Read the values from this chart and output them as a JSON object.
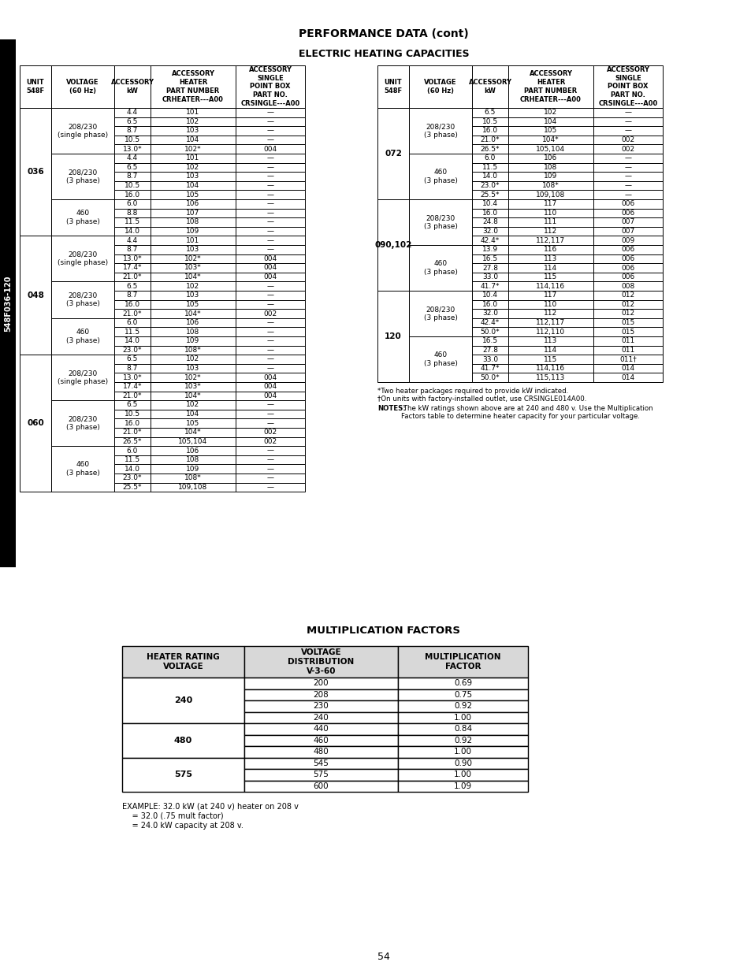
{
  "title1": "PERFORMANCE DATA (cont)",
  "title2": "ELECTRIC HEATING CAPACITIES",
  "title3": "MULTIPLICATION FACTORS",
  "page_number": "54",
  "sidebar_text": "548F036-120",
  "col_headers": [
    "UNIT\n548F",
    "VOLTAGE\n(60 Hz)",
    "ACCESSORY\nkW",
    "ACCESSORY\nHEATER\nPART NUMBER\nCRHEATER---A00",
    "ACCESSORY\nSINGLE\nPOINT BOX\nPART NO.\nCRSINGLE---A00"
  ],
  "left_table_data": [
    {
      "unit": "036",
      "groups": [
        {
          "voltage": "208/230\n(single phase)",
          "rows": [
            [
              "4.4",
              "101",
              "—"
            ],
            [
              "6.5",
              "102",
              "—"
            ],
            [
              "8.7",
              "103",
              "—"
            ],
            [
              "10.5",
              "104",
              "—"
            ],
            [
              "13.0*",
              "102*",
              "004"
            ]
          ]
        },
        {
          "voltage": "208/230\n(3 phase)",
          "rows": [
            [
              "4.4",
              "101",
              "—"
            ],
            [
              "6.5",
              "102",
              "—"
            ],
            [
              "8.7",
              "103",
              "—"
            ],
            [
              "10.5",
              "104",
              "—"
            ],
            [
              "16.0",
              "105",
              "—"
            ]
          ]
        },
        {
          "voltage": "460\n(3 phase)",
          "rows": [
            [
              "6.0",
              "106",
              "—"
            ],
            [
              "8.8",
              "107",
              "—"
            ],
            [
              "11.5",
              "108",
              "—"
            ],
            [
              "14.0",
              "109",
              "—"
            ]
          ]
        }
      ]
    },
    {
      "unit": "048",
      "groups": [
        {
          "voltage": "208/230\n(single phase)",
          "rows": [
            [
              "4.4",
              "101",
              "—"
            ],
            [
              "8.7",
              "103",
              "—"
            ],
            [
              "13.0*",
              "102*",
              "004"
            ],
            [
              "17.4*",
              "103*",
              "004"
            ],
            [
              "21.0*",
              "104*",
              "004"
            ]
          ]
        },
        {
          "voltage": "208/230\n(3 phase)",
          "rows": [
            [
              "6.5",
              "102",
              "—"
            ],
            [
              "8.7",
              "103",
              "—"
            ],
            [
              "16.0",
              "105",
              "—"
            ],
            [
              "21.0*",
              "104*",
              "002"
            ]
          ]
        },
        {
          "voltage": "460\n(3 phase)",
          "rows": [
            [
              "6.0",
              "106",
              "—"
            ],
            [
              "11.5",
              "108",
              "—"
            ],
            [
              "14.0",
              "109",
              "—"
            ],
            [
              "23.0*",
              "108*",
              "—"
            ]
          ]
        }
      ]
    },
    {
      "unit": "060",
      "groups": [
        {
          "voltage": "208/230\n(single phase)",
          "rows": [
            [
              "6.5",
              "102",
              "—"
            ],
            [
              "8.7",
              "103",
              "—"
            ],
            [
              "13.0*",
              "102*",
              "004"
            ],
            [
              "17.4*",
              "103*",
              "004"
            ],
            [
              "21.0*",
              "104*",
              "004"
            ]
          ]
        },
        {
          "voltage": "208/230\n(3 phase)",
          "rows": [
            [
              "6.5",
              "102",
              "—"
            ],
            [
              "10.5",
              "104",
              "—"
            ],
            [
              "16.0",
              "105",
              "—"
            ],
            [
              "21.0*",
              "104*",
              "002"
            ],
            [
              "26.5*",
              "105,104",
              "002"
            ]
          ]
        },
        {
          "voltage": "460\n(3 phase)",
          "rows": [
            [
              "6.0",
              "106",
              "—"
            ],
            [
              "11.5",
              "108",
              "—"
            ],
            [
              "14.0",
              "109",
              "—"
            ],
            [
              "23.0*",
              "108*",
              "—"
            ],
            [
              "25.5*",
              "109,108",
              "—"
            ]
          ]
        }
      ]
    }
  ],
  "right_table_data": [
    {
      "unit": "072",
      "groups": [
        {
          "voltage": "208/230\n(3 phase)",
          "rows": [
            [
              "6.5",
              "102",
              "—"
            ],
            [
              "10.5",
              "104",
              "—"
            ],
            [
              "16.0",
              "105",
              "—"
            ],
            [
              "21.0*",
              "104*",
              "002"
            ],
            [
              "26.5*",
              "105,104",
              "002"
            ]
          ]
        },
        {
          "voltage": "460\n(3 phase)",
          "rows": [
            [
              "6.0",
              "106",
              "—"
            ],
            [
              "11.5",
              "108",
              "—"
            ],
            [
              "14.0",
              "109",
              "—"
            ],
            [
              "23.0*",
              "108*",
              "—"
            ],
            [
              "25.5*",
              "109,108",
              "—"
            ]
          ]
        }
      ]
    },
    {
      "unit": "090,102",
      "groups": [
        {
          "voltage": "208/230\n(3 phase)",
          "rows": [
            [
              "10.4",
              "117",
              "006"
            ],
            [
              "16.0",
              "110",
              "006"
            ],
            [
              "24.8",
              "111",
              "007"
            ],
            [
              "32.0",
              "112",
              "007"
            ],
            [
              "42.4*",
              "112,117",
              "009"
            ]
          ]
        },
        {
          "voltage": "460\n(3 phase)",
          "rows": [
            [
              "13.9",
              "116",
              "006"
            ],
            [
              "16.5",
              "113",
              "006"
            ],
            [
              "27.8",
              "114",
              "006"
            ],
            [
              "33.0",
              "115",
              "006"
            ],
            [
              "41.7*",
              "114,116",
              "008"
            ]
          ]
        }
      ]
    },
    {
      "unit": "120",
      "groups": [
        {
          "voltage": "208/230\n(3 phase)",
          "rows": [
            [
              "10.4",
              "117",
              "012"
            ],
            [
              "16.0",
              "110",
              "012"
            ],
            [
              "32.0",
              "112",
              "012"
            ],
            [
              "42.4*",
              "112,117",
              "015"
            ],
            [
              "50.0*",
              "112,110",
              "015"
            ]
          ]
        },
        {
          "voltage": "460\n(3 phase)",
          "rows": [
            [
              "16.5",
              "113",
              "011"
            ],
            [
              "27.8",
              "114",
              "011"
            ],
            [
              "33.0",
              "115",
              "011†"
            ],
            [
              "41.7*",
              "114,116",
              "014"
            ],
            [
              "50.0*",
              "115,113",
              "014"
            ]
          ]
        }
      ]
    }
  ],
  "footnote1": "*Two heater packages required to provide kW indicated.",
  "footnote2": "†On units with factory-installed outlet, use CRSINGLE014A00.",
  "footnote3_bold": "NOTES:",
  "footnote3_rest": " The kW ratings shown above are at 240 and 480 v. Use the Multiplication\nFactors table to determine heater capacity for your particular voltage.",
  "mult_table_headers": [
    "HEATER RATING\nVOLTAGE",
    "VOLTAGE\nDISTRIBUTION\nV-3-60",
    "MULTIPLICATION\nFACTOR"
  ],
  "mult_table_data": [
    {
      "rating": "240",
      "rows": [
        [
          "200",
          "0.69"
        ],
        [
          "208",
          "0.75"
        ],
        [
          "230",
          "0.92"
        ],
        [
          "240",
          "1.00"
        ]
      ]
    },
    {
      "rating": "480",
      "rows": [
        [
          "440",
          "0.84"
        ],
        [
          "460",
          "0.92"
        ],
        [
          "480",
          "1.00"
        ]
      ]
    },
    {
      "rating": "575",
      "rows": [
        [
          "545",
          "0.90"
        ],
        [
          "575",
          "1.00"
        ],
        [
          "600",
          "1.09"
        ]
      ]
    }
  ],
  "example_line1": "EXAMPLE: 32.0 kW (at 240 v) heater on 208 v",
  "example_line2": "    = 32.0 (.75 mult factor)",
  "example_line3": "    = 24.0 kW capacity at 208 v."
}
